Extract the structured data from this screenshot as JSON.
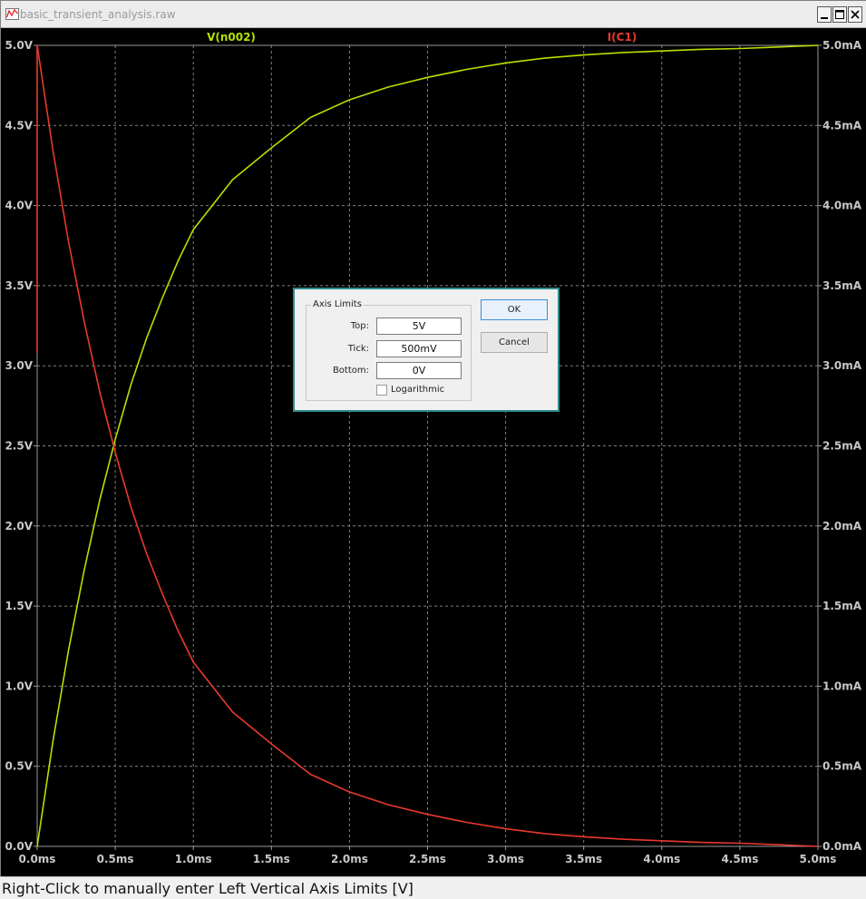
{
  "window": {
    "title": "basic_transient_analysis.raw",
    "controls": {
      "minimize": "minimize-icon",
      "maximize": "maximize-icon",
      "close": "close-icon"
    }
  },
  "chart_data": {
    "type": "line",
    "x": [
      0.0,
      0.1,
      0.2,
      0.3,
      0.4,
      0.5,
      0.6,
      0.7,
      0.8,
      0.9,
      1.0,
      1.25,
      1.5,
      1.75,
      2.0,
      2.25,
      2.5,
      2.75,
      3.0,
      3.25,
      3.5,
      3.75,
      4.0,
      4.25,
      4.5,
      4.75,
      5.0
    ],
    "series": [
      {
        "name": "V(n002)",
        "axis": "left",
        "color": "#b7e000",
        "values": [
          0.0,
          0.65,
          1.22,
          1.72,
          2.16,
          2.54,
          2.88,
          3.17,
          3.42,
          3.65,
          3.85,
          4.16,
          4.36,
          4.55,
          4.66,
          4.74,
          4.8,
          4.85,
          4.89,
          4.92,
          4.94,
          4.955,
          4.965,
          4.975,
          4.98,
          4.99,
          5.0
        ]
      },
      {
        "name": "I(C1)",
        "axis": "right",
        "color": "#e8392d",
        "values": [
          5.0,
          4.35,
          3.78,
          3.28,
          2.84,
          2.46,
          2.12,
          1.83,
          1.58,
          1.35,
          1.15,
          0.84,
          0.64,
          0.45,
          0.34,
          0.26,
          0.2,
          0.15,
          0.11,
          0.08,
          0.06,
          0.045,
          0.035,
          0.025,
          0.02,
          0.01,
          0.0
        ]
      }
    ],
    "spike": {
      "x": 0.0,
      "from": 3.08,
      "to": 5.0,
      "unit": "mA"
    },
    "xlim": [
      0,
      5.0
    ],
    "ylim_left": [
      0,
      5.0
    ],
    "ylim_right": [
      0,
      5.0
    ],
    "xticks": [
      0,
      0.5,
      1.0,
      1.5,
      2.0,
      2.5,
      3.0,
      3.5,
      4.0,
      4.5,
      5.0
    ],
    "xtick_labels": [
      "0.0ms",
      "0.5ms",
      "1.0ms",
      "1.5ms",
      "2.0ms",
      "2.5ms",
      "3.0ms",
      "3.5ms",
      "4.0ms",
      "4.5ms",
      "5.0ms"
    ],
    "yticks": [
      0,
      0.5,
      1.0,
      1.5,
      2.0,
      2.5,
      3.0,
      3.5,
      4.0,
      4.5,
      5.0
    ],
    "ytick_labels_left": [
      "0.0V",
      "0.5V",
      "1.0V",
      "1.5V",
      "2.0V",
      "2.5V",
      "3.0V",
      "3.5V",
      "4.0V",
      "4.5V",
      "5.0V"
    ],
    "ytick_labels_right": [
      "0.0mA",
      "0.5mA",
      "1.0mA",
      "1.5mA",
      "2.0mA",
      "2.5mA",
      "3.0mA",
      "3.5mA",
      "4.0mA",
      "4.5mA",
      "5.0mA"
    ],
    "grid": true,
    "background": "#000000",
    "tick_label_color": "#c8c8c8",
    "grid_color": "#808080"
  },
  "dialog": {
    "group_title": "Axis Limits",
    "top_label": "Top:",
    "top_value": "5V",
    "tick_label": "Tick:",
    "tick_value": "500mV",
    "bottom_label": "Bottom:",
    "bottom_value": "0V",
    "log_label": "Logarithmic",
    "log_checked": false,
    "ok_label": "OK",
    "cancel_label": "Cancel",
    "accent": "#2f8c8c"
  },
  "status": {
    "text": "Right-Click to manually enter Left Vertical Axis Limits [V]"
  }
}
